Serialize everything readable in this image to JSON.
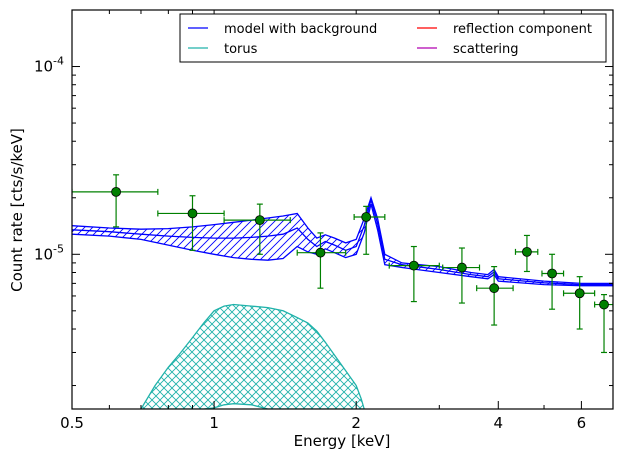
{
  "chart_data": {
    "type": "line",
    "xlabel": "Energy [keV]",
    "ylabel": "Count rate [cts/s/keV]",
    "x_scale": "log",
    "y_scale": "log",
    "xlim": [
      0.5,
      7.0
    ],
    "ylim": [
      1.5e-06,
      0.0002
    ],
    "x_ticks": [
      {
        "value": 0.5,
        "label": "0.5"
      },
      {
        "value": 1,
        "label": "1"
      },
      {
        "value": 2,
        "label": "2"
      },
      {
        "value": 4,
        "label": "4"
      },
      {
        "value": 6,
        "label": "6"
      }
    ],
    "y_ticks": [
      {
        "value": 1e-05,
        "base": "10",
        "exp": "-5"
      },
      {
        "value": 0.0001,
        "base": "10",
        "exp": "-4"
      }
    ],
    "legend": {
      "position": "top-right",
      "columns": 2,
      "entries": [
        {
          "label": "model with background",
          "color": "#0000ff"
        },
        {
          "label": "reflection component",
          "color": "#ff0000"
        },
        {
          "label": "torus",
          "color": "#20b2aa"
        },
        {
          "label": "scattering",
          "color": "#b000b0"
        }
      ]
    },
    "series": [
      {
        "name": "model with background",
        "color": "#0000ff",
        "style": "hatched-band",
        "x": [
          0.5,
          0.6,
          0.7,
          0.8,
          0.9,
          1.0,
          1.1,
          1.2,
          1.3,
          1.4,
          1.5,
          1.58,
          1.65,
          1.72,
          1.8,
          1.9,
          2.0,
          2.08,
          2.15,
          2.22,
          2.3,
          2.5,
          3.0,
          3.5,
          3.8,
          3.92,
          4.0,
          5.0,
          6.0,
          7.0
        ],
        "upper": [
          1.42e-05,
          1.38e-05,
          1.36e-05,
          1.37e-05,
          1.4e-05,
          1.44e-05,
          1.48e-05,
          1.52e-05,
          1.56e-05,
          1.6e-05,
          1.65e-05,
          1.38e-05,
          1.22e-05,
          1.27e-05,
          1.22e-05,
          1.15e-05,
          1.2e-05,
          1.55e-05,
          2e-05,
          1.55e-05,
          1e-05,
          9e-06,
          8.6e-06,
          8e-06,
          7.8e-06,
          8.3e-06,
          7.6e-06,
          7.2e-06,
          7e-06,
          7e-06
        ],
        "lower": [
          1.28e-05,
          1.25e-05,
          1.2e-05,
          1.12e-05,
          1.05e-05,
          1e-05,
          9.6e-06,
          9.4e-06,
          9.3e-06,
          9.5e-06,
          1.1e-05,
          1.03e-05,
          1e-05,
          1.07e-05,
          1.02e-05,
          9.6e-06,
          1e-05,
          1.3e-05,
          1.85e-05,
          1.35e-05,
          8.8e-06,
          8.5e-06,
          8e-06,
          7.6e-06,
          7.4e-06,
          7.8e-06,
          7.2e-06,
          6.9e-06,
          6.8e-06,
          6.8e-06
        ],
        "values": [
          1.35e-05,
          1.32e-05,
          1.28e-05,
          1.25e-05,
          1.23e-05,
          1.22e-05,
          1.22e-05,
          1.23e-05,
          1.25e-05,
          1.28e-05,
          1.38e-05,
          1.2e-05,
          1.1e-05,
          1.17e-05,
          1.12e-05,
          1.05e-05,
          1.1e-05,
          1.42e-05,
          1.95e-05,
          1.45e-05,
          9.4e-06,
          8.8e-06,
          8.3e-06,
          7.8e-06,
          7.6e-06,
          8.05e-06,
          7.4e-06,
          7.05e-06,
          6.9e-06,
          6.9e-06
        ]
      },
      {
        "name": "torus",
        "color": "#20b2aa",
        "style": "crosshatched-band",
        "x": [
          0.7,
          0.75,
          0.8,
          0.85,
          0.9,
          0.95,
          1.0,
          1.05,
          1.1,
          1.2,
          1.3,
          1.4,
          1.5,
          1.58,
          1.65,
          1.72,
          1.8,
          1.9,
          2.0,
          2.05,
          2.08
        ],
        "upper": [
          1.5e-06,
          2e-06,
          2.5e-06,
          3e-06,
          3.6e-06,
          4.3e-06,
          5e-06,
          5.3e-06,
          5.4e-06,
          5.3e-06,
          5.2e-06,
          5e-06,
          4.6e-06,
          4.3e-06,
          3.9e-06,
          3.4e-06,
          2.9e-06,
          2.4e-06,
          2e-06,
          1.7e-06,
          1.5e-06
        ],
        "lower": [
          1.5e-06,
          1.5e-06,
          1.5e-06,
          1.5e-06,
          1.5e-06,
          1.5e-06,
          1.52e-06,
          1.58e-06,
          1.6e-06,
          1.58e-06,
          1.5e-06,
          1.5e-06,
          1.5e-06,
          1.5e-06,
          1.5e-06,
          1.5e-06,
          1.5e-06,
          1.5e-06,
          1.5e-06,
          1.5e-06,
          1.5e-06
        ]
      },
      {
        "name": "data",
        "color": "#008000",
        "style": "points",
        "points": [
          {
            "x": 0.62,
            "xlo": 0.5,
            "xhi": 0.76,
            "y": 2.15e-05,
            "ylo": 1.4e-05,
            "yhi": 2.65e-05
          },
          {
            "x": 0.9,
            "xlo": 0.76,
            "xhi": 1.05,
            "y": 1.65e-05,
            "ylo": 1.05e-05,
            "yhi": 2.05e-05
          },
          {
            "x": 1.25,
            "xlo": 1.05,
            "xhi": 1.45,
            "y": 1.52e-05,
            "ylo": 1e-05,
            "yhi": 1.85e-05
          },
          {
            "x": 1.68,
            "xlo": 1.5,
            "xhi": 1.9,
            "y": 1.02e-05,
            "ylo": 6.6e-06,
            "yhi": 1.3e-05
          },
          {
            "x": 2.1,
            "xlo": 1.98,
            "xhi": 2.3,
            "y": 1.58e-05,
            "ylo": 1e-05,
            "yhi": 1.8e-05
          },
          {
            "x": 2.65,
            "xlo": 2.35,
            "xhi": 3.0,
            "y": 8.7e-06,
            "ylo": 5.6e-06,
            "yhi": 1.1e-05
          },
          {
            "x": 3.35,
            "xlo": 3.05,
            "xhi": 3.65,
            "y": 8.5e-06,
            "ylo": 5.5e-06,
            "yhi": 1.08e-05
          },
          {
            "x": 3.92,
            "xlo": 3.6,
            "xhi": 4.3,
            "y": 6.6e-06,
            "ylo": 4.2e-06,
            "yhi": 8.6e-06
          },
          {
            "x": 4.6,
            "xlo": 4.35,
            "xhi": 4.85,
            "y": 1.03e-05,
            "ylo": 8.1e-06,
            "yhi": 1.26e-05
          },
          {
            "x": 5.2,
            "xlo": 4.95,
            "xhi": 5.5,
            "y": 7.9e-06,
            "ylo": 5.1e-06,
            "yhi": 1e-05
          },
          {
            "x": 5.95,
            "xlo": 5.5,
            "xhi": 6.4,
            "y": 6.2e-06,
            "ylo": 4e-06,
            "yhi": 7.6e-06
          },
          {
            "x": 6.7,
            "xlo": 6.4,
            "xhi": 7.0,
            "y": 5.4e-06,
            "ylo": 3e-06,
            "yhi": 6.1e-06
          }
        ]
      }
    ],
    "grid": false
  }
}
